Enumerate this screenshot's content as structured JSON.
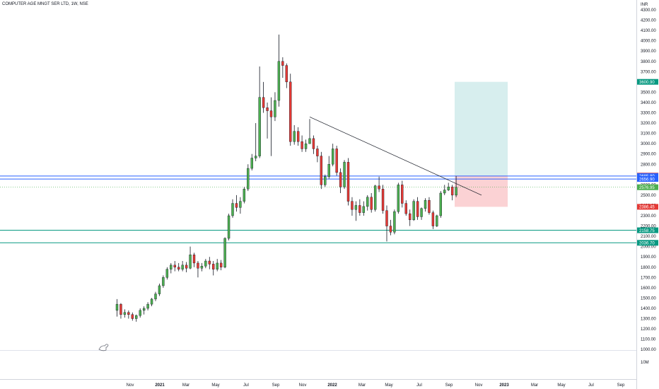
{
  "header": {
    "symbol_line": "COMPUTER AGE MNGT SER LTD, 1W, NSE"
  },
  "colors": {
    "up": "#4caf50",
    "down": "#e53935",
    "blue_level": "#2962ff",
    "green_level": "#089981",
    "target_zone": "#d7eeee",
    "stop_zone": "#fbd2d4",
    "grid": "#e0e3eb",
    "text": "#131722"
  },
  "chart_data": {
    "type": "candlestick",
    "currency_label": "INR",
    "y_ticks": [
      1000,
      1100,
      1200,
      1300,
      1400,
      1500,
      1600,
      1700,
      1800,
      1900,
      2000,
      2100,
      2200,
      2300,
      2400,
      2500,
      2600,
      2700,
      2800,
      2900,
      3000,
      3100,
      3200,
      3300,
      3400,
      3500,
      3600,
      3700,
      3800,
      3900,
      4000,
      4100,
      4200,
      4300
    ],
    "y_tick_labels": [
      "1000.00",
      "1100.00",
      "1200.00",
      "1300.00",
      "1400.00",
      "1500.00",
      "1600.00",
      "1700.00",
      "1800.00",
      "1900.00",
      "2000.00",
      "2100.00",
      "2200.00",
      "2300.00",
      "2400.00",
      "2500.00",
      "2600.00",
      "2700.00",
      "2800.00",
      "2900.00",
      "3000.00",
      "3100.00",
      "3200.00",
      "3300.00",
      "3400.00",
      "3500.00",
      "3600.00",
      "3700.00",
      "3800.00",
      "3900.00",
      "4000.00",
      "4100.00",
      "4200.00",
      "4300.00"
    ],
    "volume_label": "10M",
    "x_labels": [
      "Nov",
      "2021",
      "Mar",
      "May",
      "Jul",
      "Sep",
      "Nov",
      "2022",
      "Mar",
      "May",
      "Jul",
      "Sep",
      "Nov",
      "2023",
      "Mar",
      "May",
      "Jul",
      "Sep"
    ],
    "x_label_bold": [
      false,
      true,
      false,
      false,
      false,
      false,
      false,
      true,
      false,
      false,
      false,
      false,
      false,
      true,
      false,
      false,
      false,
      false
    ],
    "candles": [
      [
        1380,
        1440,
        1490,
        1320
      ],
      [
        1440,
        1340,
        1450,
        1300
      ],
      [
        1340,
        1360,
        1390,
        1310
      ],
      [
        1360,
        1340,
        1380,
        1300
      ],
      [
        1340,
        1300,
        1360,
        1280
      ],
      [
        1300,
        1330,
        1340,
        1270
      ],
      [
        1330,
        1380,
        1400,
        1310
      ],
      [
        1380,
        1400,
        1420,
        1340
      ],
      [
        1400,
        1440,
        1460,
        1380
      ],
      [
        1440,
        1490,
        1500,
        1420
      ],
      [
        1490,
        1540,
        1560,
        1470
      ],
      [
        1540,
        1620,
        1640,
        1520
      ],
      [
        1620,
        1700,
        1720,
        1600
      ],
      [
        1700,
        1780,
        1800,
        1680
      ],
      [
        1780,
        1820,
        1840,
        1740
      ],
      [
        1820,
        1800,
        1860,
        1760
      ],
      [
        1800,
        1780,
        1840,
        1760
      ],
      [
        1780,
        1820,
        1860,
        1760
      ],
      [
        1820,
        1790,
        1850,
        1750
      ],
      [
        1790,
        1920,
        2000,
        1780
      ],
      [
        1920,
        1840,
        1940,
        1800
      ],
      [
        1840,
        1790,
        1860,
        1700
      ],
      [
        1790,
        1810,
        1840,
        1760
      ],
      [
        1810,
        1860,
        1880,
        1790
      ],
      [
        1860,
        1830,
        1900,
        1780
      ],
      [
        1830,
        1780,
        1860,
        1720
      ],
      [
        1780,
        1840,
        1880,
        1760
      ],
      [
        1840,
        1800,
        1870,
        1770
      ],
      [
        1800,
        2080,
        2090,
        1790
      ],
      [
        2080,
        2300,
        2320,
        2060
      ],
      [
        2300,
        2420,
        2460,
        2280
      ],
      [
        2420,
        2380,
        2500,
        2340
      ],
      [
        2380,
        2440,
        2480,
        2320
      ],
      [
        2440,
        2560,
        2580,
        2420
      ],
      [
        2560,
        2760,
        2800,
        2540
      ],
      [
        2760,
        2860,
        2900,
        2740
      ],
      [
        2860,
        2880,
        3200,
        2830
      ],
      [
        2880,
        3450,
        3750,
        2860
      ],
      [
        3450,
        3350,
        3600,
        3300
      ],
      [
        3350,
        3320,
        3400,
        3050
      ],
      [
        3320,
        3260,
        3450,
        2880
      ],
      [
        3260,
        3420,
        3500,
        3220
      ],
      [
        3420,
        3800,
        4060,
        3360
      ],
      [
        3800,
        3760,
        3840,
        3640
      ],
      [
        3760,
        3600,
        3780,
        3540
      ],
      [
        3600,
        3020,
        3680,
        2980
      ],
      [
        3020,
        3120,
        3180,
        2990
      ],
      [
        3120,
        3020,
        3160,
        2980
      ],
      [
        3020,
        2950,
        3080,
        2920
      ],
      [
        2950,
        3000,
        3040,
        2920
      ],
      [
        3000,
        3050,
        3240,
        3000
      ],
      [
        3050,
        2950,
        3080,
        2900
      ],
      [
        2950,
        2880,
        2980,
        2820
      ],
      [
        2880,
        2600,
        2920,
        2560
      ],
      [
        2600,
        2680,
        2700,
        2580
      ],
      [
        2680,
        2800,
        2880,
        2660
      ],
      [
        2800,
        2950,
        3000,
        2780
      ],
      [
        2950,
        2720,
        2980,
        2690
      ],
      [
        2720,
        2580,
        2760,
        2520
      ],
      [
        2580,
        2820,
        2840,
        2560
      ],
      [
        2820,
        2440,
        2860,
        2400
      ],
      [
        2440,
        2360,
        2480,
        2300
      ],
      [
        2360,
        2400,
        2440,
        2250
      ],
      [
        2400,
        2330,
        2460,
        2300
      ],
      [
        2330,
        2390,
        2440,
        2300
      ],
      [
        2390,
        2480,
        2500,
        2350
      ],
      [
        2480,
        2360,
        2520,
        2330
      ],
      [
        2360,
        2590,
        2600,
        2340
      ],
      [
        2590,
        2560,
        2680,
        2530
      ],
      [
        2560,
        2350,
        2600,
        2320
      ],
      [
        2350,
        2200,
        2400,
        2050
      ],
      [
        2200,
        2140,
        2260,
        2110
      ],
      [
        2140,
        2340,
        2360,
        2120
      ],
      [
        2340,
        2600,
        2620,
        2320
      ],
      [
        2600,
        2420,
        2640,
        2380
      ],
      [
        2420,
        2320,
        2450,
        2300
      ],
      [
        2320,
        2260,
        2360,
        2200
      ],
      [
        2260,
        2440,
        2460,
        2250
      ],
      [
        2440,
        2290,
        2480,
        2260
      ],
      [
        2290,
        2370,
        2380,
        2260
      ],
      [
        2370,
        2450,
        2470,
        2340
      ],
      [
        2450,
        2330,
        2480,
        2310
      ],
      [
        2330,
        2200,
        2350,
        2170
      ],
      [
        2200,
        2300,
        2310,
        2190
      ],
      [
        2300,
        2520,
        2540,
        2280
      ],
      [
        2520,
        2550,
        2600,
        2500
      ],
      [
        2550,
        2580,
        2620,
        2540
      ],
      [
        2580,
        2500,
        2600,
        2450
      ],
      [
        2500,
        2576.95,
        2685.8,
        2480
      ]
    ],
    "levels": [
      {
        "price": 2685.8,
        "label": "2685.80",
        "color": "#2962ff"
      },
      {
        "price": 2656.9,
        "label": "2656.90",
        "color": "#2962ff"
      },
      {
        "price": 2158.75,
        "label": "2158.75",
        "color": "#089981"
      },
      {
        "price": 2036.7,
        "label": "2036.70",
        "color": "#089981"
      }
    ],
    "last_price": {
      "price": 2576.95,
      "label": "2576.95",
      "color": "#4caf50"
    },
    "position": {
      "target": 3600.9,
      "target_label": "3600.90",
      "entry": 2690.0,
      "entry_label": "2690.00",
      "stop": 2386.45,
      "stop_label": "2386.45"
    },
    "trendline": {
      "from_price": 3260,
      "to_price": 2500
    }
  }
}
